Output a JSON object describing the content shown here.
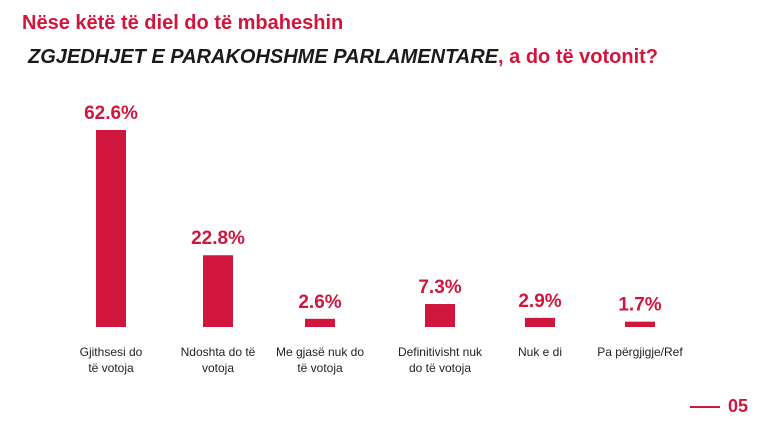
{
  "header": {
    "line1": "Nëse këtë të diel do të mbaheshin",
    "line2_emphasis": "ZGJEDHJET E PARAKOHSHME PARLAMENTARE",
    "line2_rest": ", a do të votonit?"
  },
  "footer": {
    "page_number": "05"
  },
  "colors": {
    "accent": "#d0163d",
    "label_text": "#222222"
  },
  "chart_data": {
    "type": "bar",
    "categories": [
      [
        "Gjithsesi do",
        "të votoja"
      ],
      [
        "Ndoshta do të",
        "votoja"
      ],
      [
        "Me gjasë nuk do",
        "të votoja"
      ],
      [
        "Definitivisht nuk",
        "do të votoja"
      ],
      [
        "Nuk e di"
      ],
      [
        "Pa përgjigje/Ref"
      ]
    ],
    "values": [
      62.6,
      22.8,
      2.6,
      7.3,
      2.9,
      1.7
    ],
    "data_labels": [
      "62.6%",
      "22.8%",
      "2.6%",
      "7.3%",
      "2.9%",
      "1.7%"
    ],
    "ylim": [
      0,
      62.6
    ],
    "grid": false,
    "legend": "none"
  }
}
